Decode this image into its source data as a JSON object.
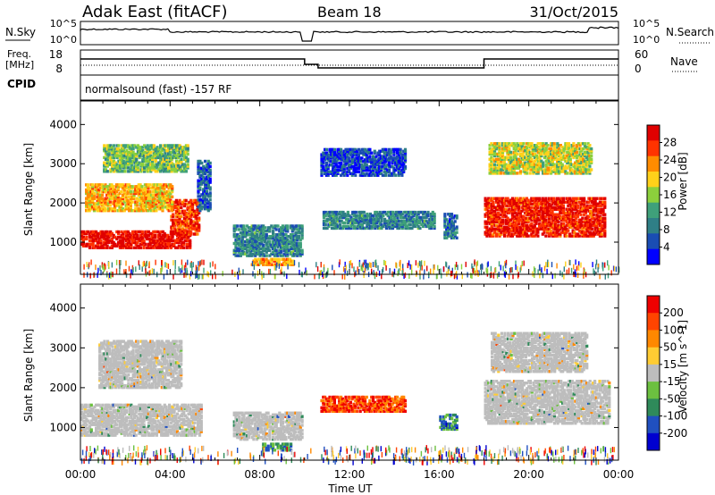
{
  "header": {
    "station": "Adak East (fitACF)",
    "beam": "Beam 18",
    "date": "31/Oct/2015"
  },
  "noise_panel": {
    "left_label": "N.Sky",
    "right_label": "N.Search",
    "y_ticks": [
      "10^5",
      "10^0"
    ]
  },
  "freq_panel": {
    "left_label_1": "Freq.",
    "left_label_2": "[MHz]",
    "left_ticks": [
      "18",
      "8"
    ],
    "right_label": "Nave",
    "right_ticks": [
      "60",
      "0"
    ]
  },
  "cpid": {
    "label": "CPID",
    "text": "normalsound (fast) -157 RF"
  },
  "chart_data": [
    {
      "type": "heatmap",
      "ylabel": "Slant Range [km]",
      "xlabel": "",
      "xlim": [
        0,
        24
      ],
      "ylim": [
        180,
        4600
      ],
      "y_ticks": [
        1000,
        2000,
        3000,
        4000
      ],
      "colorbar": {
        "label": "Power [dB]",
        "range": [
          0,
          32
        ],
        "ticks": [
          "4",
          "8",
          "12",
          "16",
          "20",
          "24",
          "28"
        ],
        "colors": [
          "#0000ff",
          "#1a4db3",
          "#2f7f86",
          "#3fa07a",
          "#8cd03c",
          "#ffd11a",
          "#ff8c00",
          "#ff3300",
          "#e00000"
        ]
      },
      "regions": [
        {
          "t0": 0.0,
          "t1": 4.9,
          "r0": 850,
          "r1": 1300,
          "level": 0.95
        },
        {
          "t0": 4.0,
          "t1": 5.3,
          "r0": 1200,
          "r1": 2100,
          "level": 0.85
        },
        {
          "t0": 0.2,
          "t1": 4.1,
          "r0": 1800,
          "r1": 2500,
          "level": 0.65
        },
        {
          "t0": 1.0,
          "t1": 4.8,
          "r0": 2800,
          "r1": 3500,
          "level": 0.45
        },
        {
          "t0": 5.2,
          "t1": 5.8,
          "r0": 1800,
          "r1": 3100,
          "level": 0.2
        },
        {
          "t0": 6.8,
          "t1": 9.9,
          "r0": 650,
          "r1": 1450,
          "level": 0.3
        },
        {
          "t0": 7.6,
          "t1": 9.5,
          "r0": 420,
          "r1": 600,
          "level": 0.7
        },
        {
          "t0": 10.7,
          "t1": 14.5,
          "r0": 2700,
          "r1": 3400,
          "level": 0.15
        },
        {
          "t0": 10.8,
          "t1": 15.8,
          "r0": 1350,
          "r1": 1800,
          "level": 0.3
        },
        {
          "t0": 16.2,
          "t1": 16.8,
          "r0": 1100,
          "r1": 1750,
          "level": 0.25
        },
        {
          "t0": 18.0,
          "t1": 23.4,
          "r0": 1150,
          "r1": 2150,
          "level": 0.9
        },
        {
          "t0": 18.2,
          "t1": 22.8,
          "r0": 2750,
          "r1": 3550,
          "level": 0.55
        }
      ]
    },
    {
      "type": "heatmap",
      "ylabel": "Slant Range [km]",
      "xlabel": "Time UT",
      "xlim": [
        0,
        24
      ],
      "ylim": [
        180,
        4600
      ],
      "x_ticks": [
        "00:00",
        "04:00",
        "08:00",
        "12:00",
        "16:00",
        "20:00",
        "00:00"
      ],
      "y_ticks": [
        1000,
        2000,
        3000,
        4000
      ],
      "colorbar": {
        "label": "Velocity [m s^-1]",
        "range": [
          -250,
          250
        ],
        "ticks": [
          "200",
          "100",
          "50",
          "15",
          "-15",
          "-50",
          "-100",
          "-200"
        ],
        "colors": [
          "#0000d0",
          "#2050c0",
          "#2f8a5a",
          "#6cc040",
          "#bdbdbd",
          "#ffcc33",
          "#ff8800",
          "#ff4400",
          "#ee0000"
        ]
      },
      "regions": [
        {
          "t0": 0.0,
          "t1": 5.4,
          "r0": 800,
          "r1": 1600,
          "level": 0.5
        },
        {
          "t0": 0.8,
          "t1": 4.5,
          "r0": 2000,
          "r1": 3200,
          "level": 0.5
        },
        {
          "t0": 6.8,
          "t1": 9.9,
          "r0": 700,
          "r1": 1400,
          "level": 0.5
        },
        {
          "t0": 8.1,
          "t1": 9.4,
          "r0": 420,
          "r1": 620,
          "level": 0.3
        },
        {
          "t0": 10.7,
          "t1": 14.5,
          "r0": 1400,
          "r1": 1800,
          "level": 0.85
        },
        {
          "t0": 16.0,
          "t1": 16.8,
          "r0": 950,
          "r1": 1350,
          "level": 0.25
        },
        {
          "t0": 18.0,
          "t1": 23.6,
          "r0": 1100,
          "r1": 2200,
          "level": 0.5
        },
        {
          "t0": 18.3,
          "t1": 22.6,
          "r0": 2400,
          "r1": 3400,
          "level": 0.5
        }
      ]
    }
  ]
}
